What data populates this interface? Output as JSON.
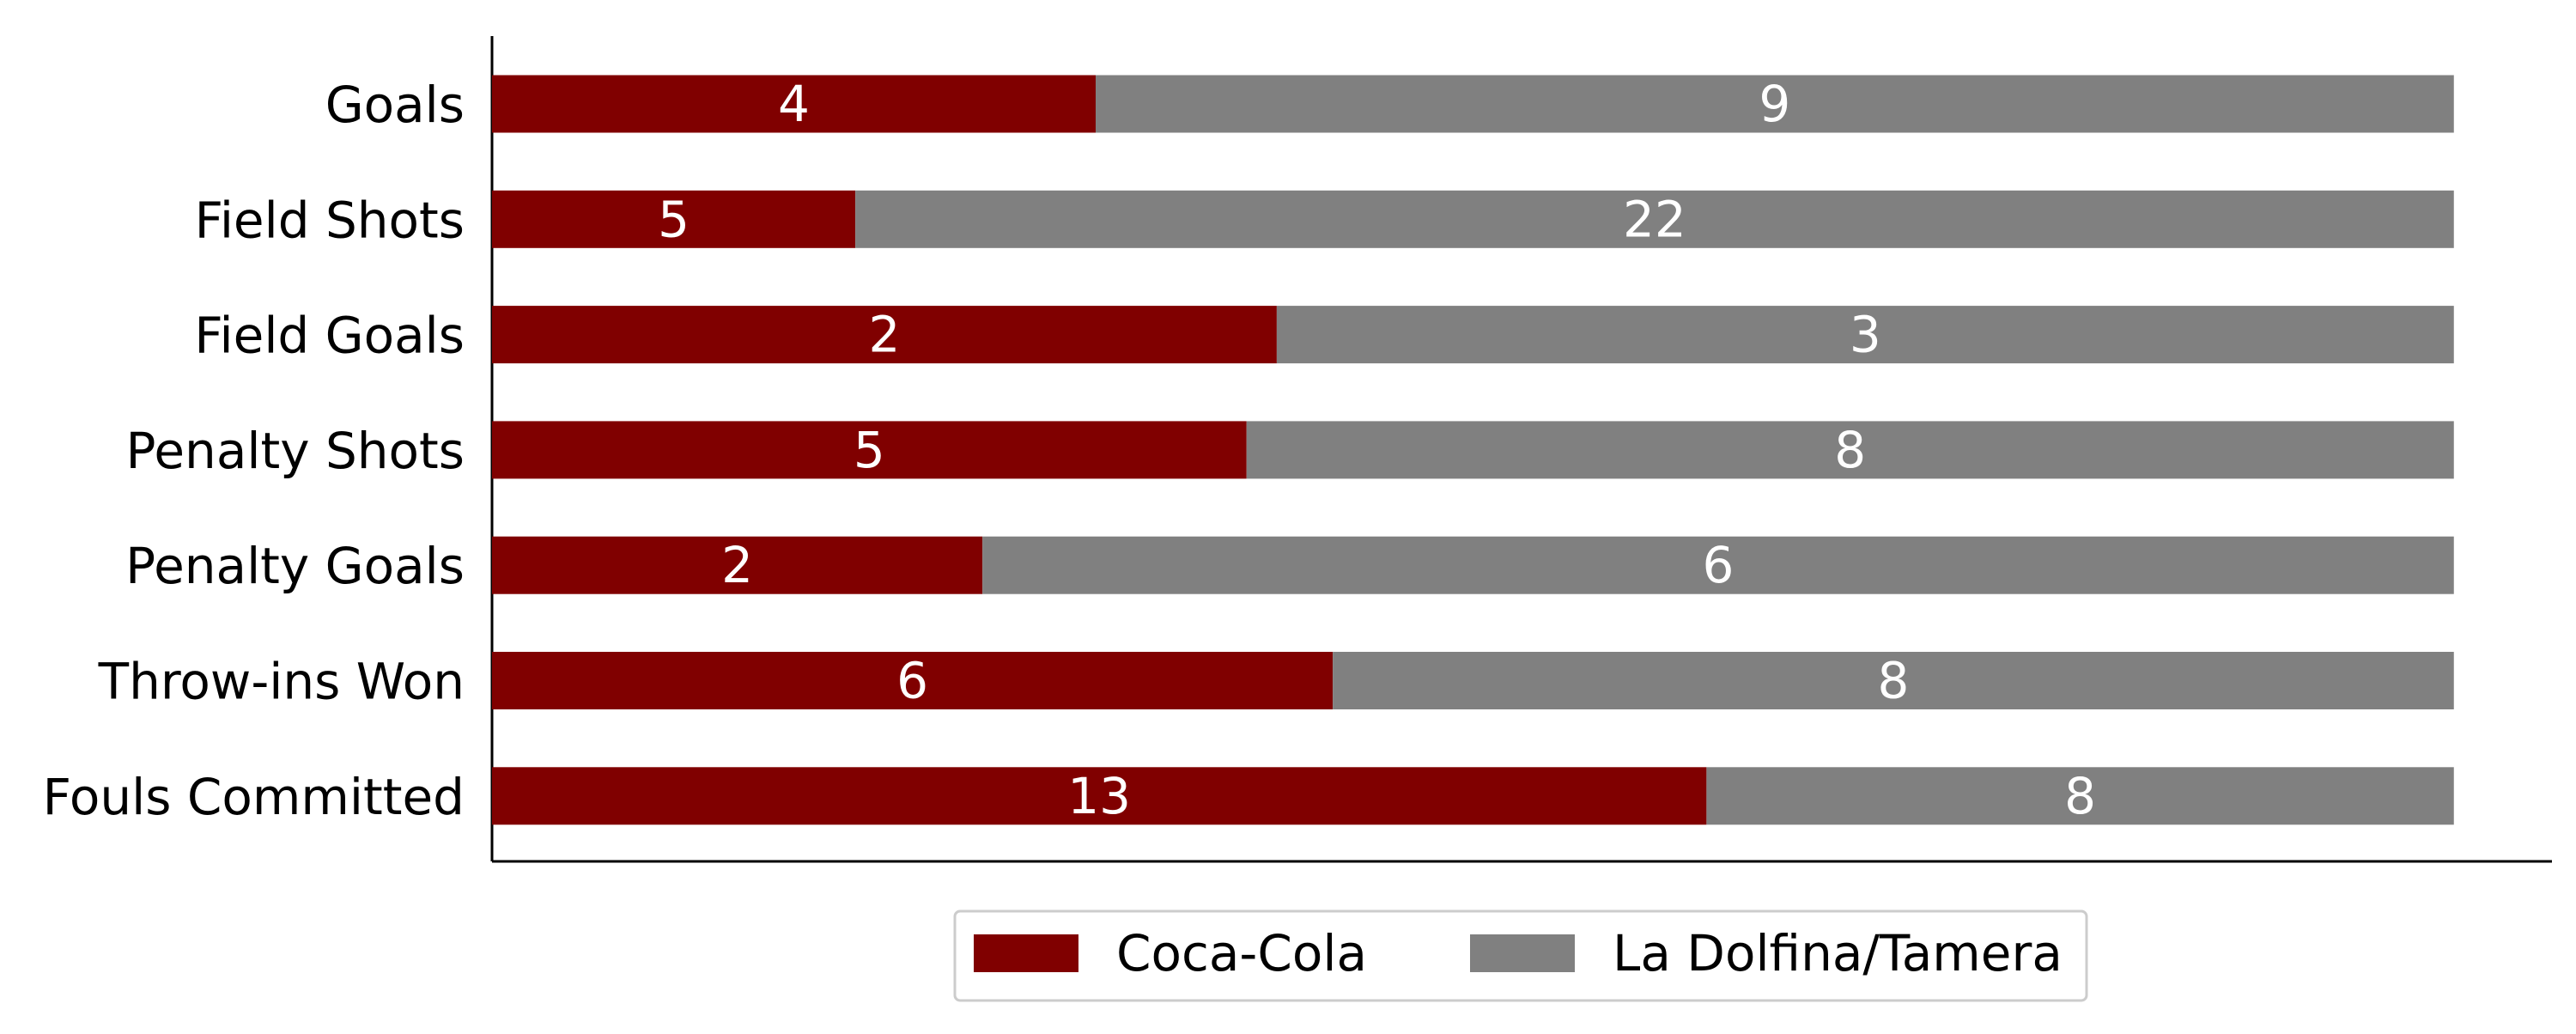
{
  "chart_data": {
    "type": "bar",
    "orientation": "horizontal",
    "stacked": true,
    "normalized": true,
    "categories": [
      "Goals",
      "Field Shots",
      "Field Goals",
      "Penalty Shots",
      "Penalty Goals",
      "Throw-ins Won",
      "Fouls Committed"
    ],
    "series": [
      {
        "name": "Coca-Cola",
        "color": "#800000",
        "values": [
          4,
          5,
          2,
          5,
          2,
          6,
          13
        ]
      },
      {
        "name": "La Dolfina/Tamera",
        "color": "#808080",
        "values": [
          9,
          22,
          3,
          8,
          6,
          8,
          8
        ]
      }
    ],
    "xlim": [
      0,
      1.05
    ],
    "grid": false,
    "legend_position": "bottom-center"
  }
}
